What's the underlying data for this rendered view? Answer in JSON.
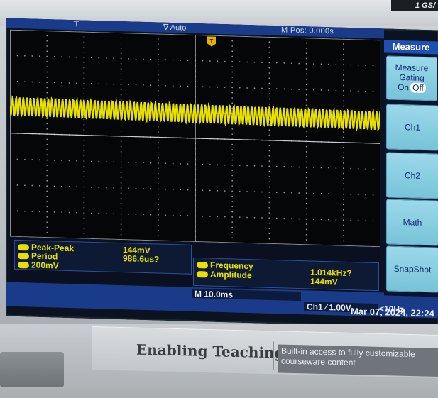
{
  "device": {
    "brand_corner": "1 GS/",
    "brand_name": "Enabling Teaching",
    "brand_sub": "Built-in access to fully customizable courseware content"
  },
  "status_bar": {
    "run_mode": "∇ Auto",
    "mpos": "M Pos: 0.000s",
    "trigger_marker": "T"
  },
  "menu": {
    "title": "Measure",
    "gating_label_1": "Measure",
    "gating_label_2": "Gating",
    "gating_on": "On",
    "gating_off": "Off",
    "buttons": [
      "Ch1",
      "Ch2",
      "Math",
      "SnapShot"
    ]
  },
  "measurements_left": [
    {
      "channel": "1",
      "name": "Peak-Peak",
      "value": "144mV"
    },
    {
      "channel": "1",
      "name": "Period",
      "value": "986.6us?"
    }
  ],
  "measurements_right": [
    {
      "channel": "1",
      "name": "Frequency",
      "value": "1.014kHz?"
    },
    {
      "channel": "1",
      "name": "Amplitude",
      "value": "144mV"
    }
  ],
  "channel_scale": {
    "channel": "1",
    "value": "200mV"
  },
  "timebase": "M 10.0ms",
  "trigger": {
    "label": "Ch1 ∕ 1.00V",
    "freq": "<10Hz"
  },
  "datetime": "Mar 07, 2024, 22:24",
  "colors": {
    "trace": "#e8e000",
    "status_blue": "#1a3b8a",
    "menu_button": "#8fd0e3"
  }
}
